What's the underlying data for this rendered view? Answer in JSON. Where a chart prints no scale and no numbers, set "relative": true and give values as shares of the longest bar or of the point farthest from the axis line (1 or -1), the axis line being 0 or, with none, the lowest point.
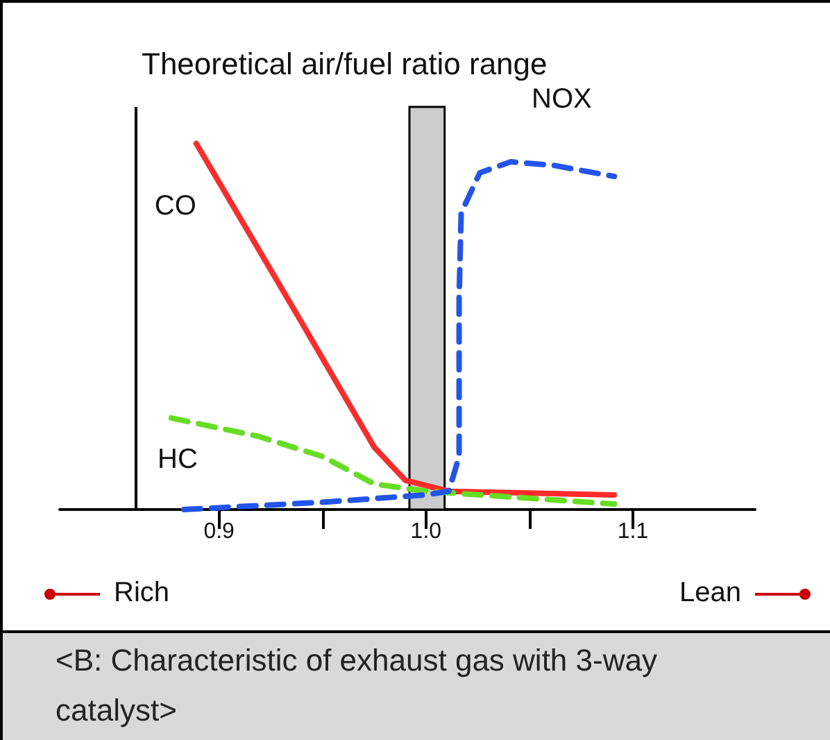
{
  "chart_data": {
    "type": "line",
    "title": "Theoretical air/fuel ratio range",
    "relative": true,
    "xlim": [
      0.823,
      1.159
    ],
    "xticks": [
      0.9,
      {
        "value": 0.95,
        "label": null
      },
      {
        "value": 1.0,
        "label": "1.0"
      },
      {
        "value": 1.05,
        "label": null
      },
      1.1
    ],
    "series": [
      {
        "name": "CO",
        "color": "#ff2a2a",
        "line_style": "solid",
        "x": [
          0.889,
          0.939,
          0.975,
          0.99,
          1.011,
          1.091
        ],
        "values": [
          1,
          0.52,
          0.17,
          0.08,
          0.05,
          0.04
        ]
      },
      {
        "name": "HC",
        "color": "#66dd22",
        "line_style": "dashed",
        "x": [
          0.877,
          0.919,
          0.95,
          0.975,
          1.0,
          1.052,
          1.091
        ],
        "values": [
          0.25,
          0.2,
          0.145,
          0.07,
          0.05,
          0.03,
          0.015
        ]
      },
      {
        "name": "NOX",
        "color": "#2255ee",
        "line_style": "dashed",
        "x": [
          0.883,
          0.95,
          1.0,
          1.011,
          1.016,
          1.016,
          1.017,
          1.026,
          1.041,
          1.062,
          1.091
        ],
        "values": [
          0,
          0.02,
          0.04,
          0.05,
          0.145,
          0.58,
          0.81,
          0.92,
          0.95,
          0.94,
          0.91
        ]
      }
    ],
    "bands": [
      {
        "axis": "x",
        "from": 0.992,
        "to": 1.009,
        "color": "#cccccc"
      }
    ],
    "ref_lines": [
      {
        "axis": "x",
        "value": 0.86
      }
    ],
    "grid": false,
    "legend": false,
    "annotations": [
      "Rich",
      "Lean",
      "<B: Characteristic of exhaust gas with 3-way catalyst>"
    ]
  }
}
